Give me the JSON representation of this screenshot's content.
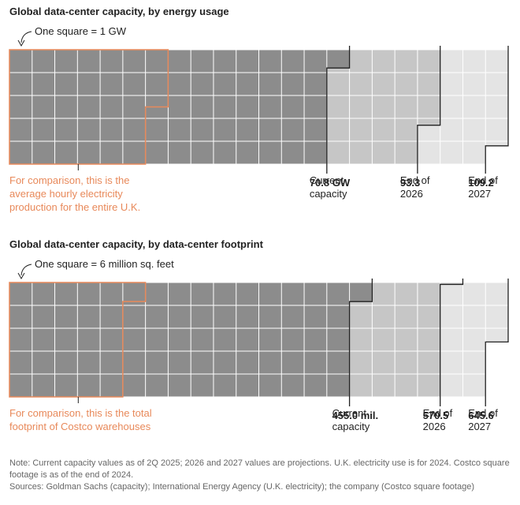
{
  "chart_data": [
    {
      "type": "waffle",
      "title": "Global data-center capacity, by energy usage",
      "unit_label": "One square = 1 GW",
      "square_value": 1,
      "comparison": {
        "label": "For comparison, this is the average hourly electricity production for the entire U.K.",
        "value": 32.5,
        "color": "#e8895a"
      },
      "series": [
        {
          "name": "Current capacity",
          "value": 70.8,
          "value_label": "70.8 GW",
          "color": "#8c8c8c"
        },
        {
          "name": "End of 2026",
          "value": 93.3,
          "color": "#c6c6c6"
        },
        {
          "name": "End of 2027",
          "value": 109.2,
          "color": "#e4e4e4"
        }
      ]
    },
    {
      "type": "waffle",
      "title": "Global data-center capacity, by data-center footprint",
      "unit_label": "One square = 6 million sq. feet",
      "square_value": 6,
      "comparison": {
        "label": "For comparison, this is the total footprint of Costco warehouses",
        "value": 155,
        "color": "#e8895a"
      },
      "series": [
        {
          "name": "Current capacity",
          "value": 455,
          "value_label": "455.0 mil.",
          "color": "#8c8c8c"
        },
        {
          "name": "End of 2026",
          "value": 570.5,
          "color": "#c6c6c6"
        },
        {
          "name": "End of 2027",
          "value": 645.6,
          "color": "#e4e4e4"
        }
      ]
    }
  ],
  "note": "Note: Current capacity values as of 2Q 2025; 2026 and 2027 values are projections. U.K. electricity use is for 2024. Costco square footage is as of the end of 2024.",
  "sources": "Sources: Goldman Sachs (capacity); International Energy Agency (U.K. electricity); the company (Costco square footage)"
}
